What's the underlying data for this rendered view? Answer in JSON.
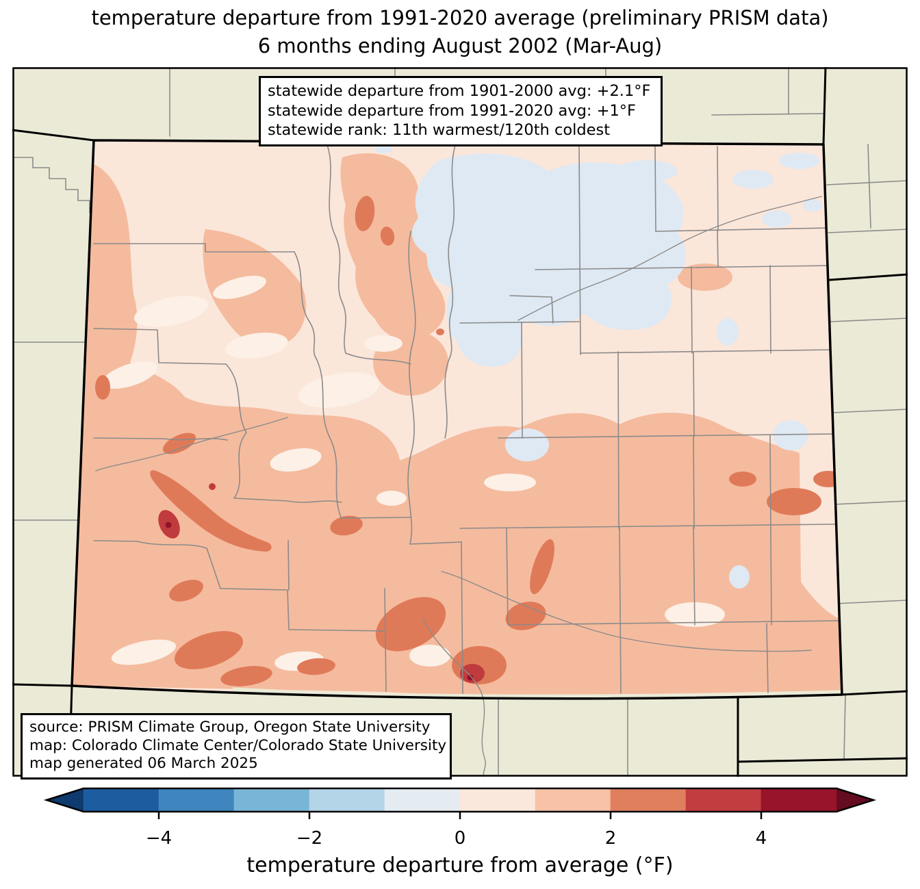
{
  "title": {
    "line1": "temperature departure from 1991-2020 average (preliminary PRISM data)",
    "line2": "6 months ending August 2002 (Mar-Aug)"
  },
  "stats_box": {
    "line1": "statewide departure from 1901-2000 avg: +2.1°F",
    "line2": "statewide departure from 1991-2020 avg: +1°F",
    "line3": "statewide rank: 11th warmest/120th coldest"
  },
  "source_box": {
    "line1": "source: PRISM Climate Group, Oregon State University",
    "line2": "map: Colorado Climate Center/Colorado State University",
    "line3": "map generated 06 March 2025"
  },
  "colorbar": {
    "label": "temperature departure from average (°F)",
    "range": [
      -5,
      5
    ],
    "tick_values": [
      -4,
      -2,
      0,
      2,
      4
    ],
    "tick_labels": [
      "−4",
      "−2",
      "0",
      "2",
      "4"
    ],
    "segment_colors": [
      "#1d5c9f",
      "#4086be",
      "#79b5d7",
      "#b3d5e7",
      "#e4ecf2",
      "#fae8dc",
      "#f8c2a6",
      "#e07f5e",
      "#c23d40",
      "#97142b"
    ],
    "under_color": "#0e3a6d",
    "over_color": "#650c20"
  },
  "map": {
    "region": "Colorado",
    "legend_meaning": "temperature departure bins (°F), PRISM preliminary data"
  },
  "colors": {
    "beige": "#ebead7",
    "county": "#8a8a8a",
    "bin5blue": "#dfe9f3",
    "bin6base": "#fbe6da",
    "bin6light": "#fcf0e7",
    "bin7salmon": "#f5bb9e",
    "bin8dark": "#df7a59",
    "bin9red": "#c03b3d",
    "bin10maroon": "#921227",
    "frame": "#000000"
  }
}
